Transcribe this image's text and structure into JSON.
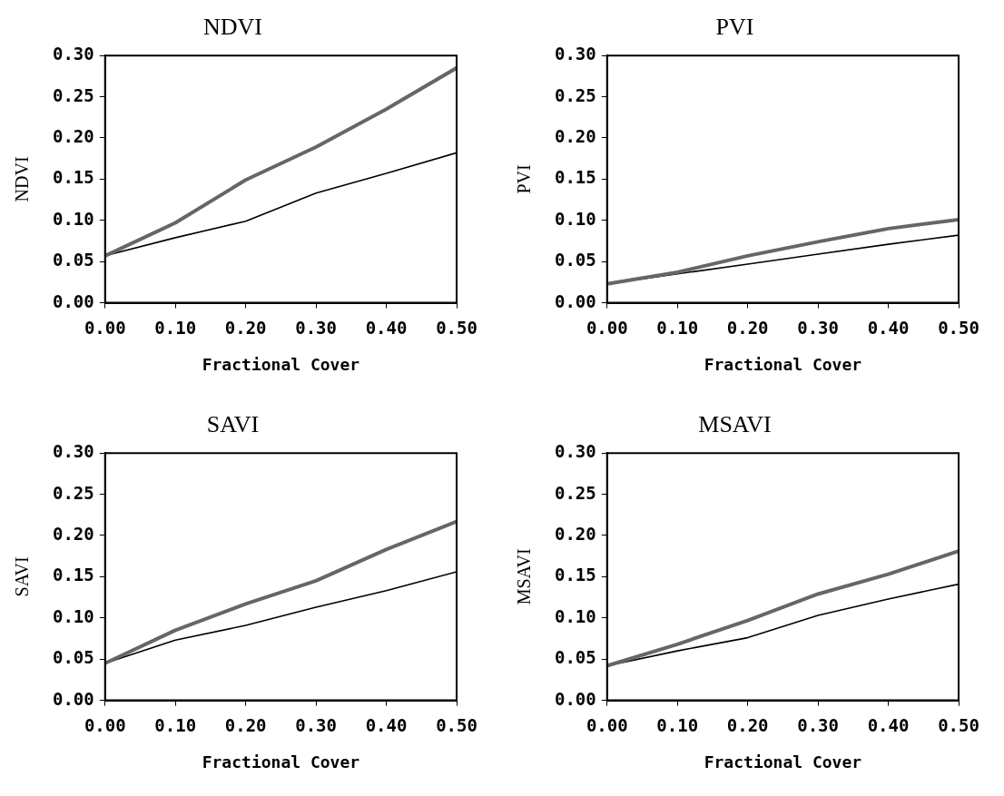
{
  "chart_data": [
    {
      "type": "line",
      "title": "NDVI",
      "xlabel": "Fractional Cover",
      "ylabel": "NDVI",
      "x": [
        0,
        0.1,
        0.2,
        0.3,
        0.4,
        0.5
      ],
      "xlim": [
        0,
        0.5
      ],
      "xticks": [
        {
          "value": 0,
          "label": "0.00"
        },
        {
          "value": 0.1,
          "label": "0.10"
        },
        {
          "value": 0.2,
          "label": "0.20"
        },
        {
          "value": 0.3,
          "label": "0.30"
        },
        {
          "value": 0.4,
          "label": "0.40"
        },
        {
          "value": 0.5,
          "label": "0.50"
        }
      ],
      "ylim": [
        0,
        0.3
      ],
      "yticks": [
        {
          "value": 0,
          "label": "0.00"
        },
        {
          "value": 0.05,
          "label": "0.05"
        },
        {
          "value": 0.1,
          "label": "0.10"
        },
        {
          "value": 0.15,
          "label": "0.15"
        },
        {
          "value": 0.2,
          "label": "0.20"
        },
        {
          "value": 0.25,
          "label": "0.25"
        },
        {
          "value": 0.3,
          "label": "0.30"
        }
      ],
      "marker": "none",
      "line_style": "solid",
      "legend": false,
      "series": [
        {
          "color": "#666666",
          "values": [
            0.057,
            0.097,
            0.149,
            0.189,
            0.235,
            0.285
          ]
        },
        {
          "color": "#000000",
          "values": [
            0.057,
            0.079,
            0.099,
            0.133,
            0.157,
            0.182
          ]
        }
      ]
    },
    {
      "type": "line",
      "title": "PVI",
      "xlabel": "Fractional Cover",
      "ylabel": "PVI",
      "x": [
        0,
        0.1,
        0.2,
        0.3,
        0.4,
        0.5
      ],
      "xlim": [
        0,
        0.5
      ],
      "xticks": [
        {
          "value": 0,
          "label": "0.00"
        },
        {
          "value": 0.1,
          "label": "0.10"
        },
        {
          "value": 0.2,
          "label": "0.20"
        },
        {
          "value": 0.3,
          "label": "0.30"
        },
        {
          "value": 0.4,
          "label": "0.40"
        },
        {
          "value": 0.5,
          "label": "0.50"
        }
      ],
      "ylim": [
        0,
        0.3
      ],
      "yticks": [
        {
          "value": 0,
          "label": "0.00"
        },
        {
          "value": 0.05,
          "label": "0.05"
        },
        {
          "value": 0.1,
          "label": "0.10"
        },
        {
          "value": 0.15,
          "label": "0.15"
        },
        {
          "value": 0.2,
          "label": "0.20"
        },
        {
          "value": 0.25,
          "label": "0.25"
        },
        {
          "value": 0.3,
          "label": "0.30"
        }
      ],
      "marker": "none",
      "line_style": "solid",
      "legend": false,
      "series": [
        {
          "color": "#666666",
          "values": [
            0.023,
            0.037,
            0.057,
            0.074,
            0.09,
            0.101
          ]
        },
        {
          "color": "#000000",
          "values": [
            0.023,
            0.035,
            0.047,
            0.059,
            0.071,
            0.082
          ]
        }
      ]
    },
    {
      "type": "line",
      "title": "SAVI",
      "xlabel": "Fractional Cover",
      "ylabel": "SAVI",
      "x": [
        0,
        0.1,
        0.2,
        0.3,
        0.4,
        0.5
      ],
      "xlim": [
        0,
        0.5
      ],
      "xticks": [
        {
          "value": 0,
          "label": "0.00"
        },
        {
          "value": 0.1,
          "label": "0.10"
        },
        {
          "value": 0.2,
          "label": "0.20"
        },
        {
          "value": 0.3,
          "label": "0.30"
        },
        {
          "value": 0.4,
          "label": "0.40"
        },
        {
          "value": 0.5,
          "label": "0.50"
        }
      ],
      "ylim": [
        0,
        0.3
      ],
      "yticks": [
        {
          "value": 0,
          "label": "0.00"
        },
        {
          "value": 0.05,
          "label": "0.05"
        },
        {
          "value": 0.1,
          "label": "0.10"
        },
        {
          "value": 0.15,
          "label": "0.15"
        },
        {
          "value": 0.2,
          "label": "0.20"
        },
        {
          "value": 0.25,
          "label": "0.25"
        },
        {
          "value": 0.3,
          "label": "0.30"
        }
      ],
      "marker": "none",
      "line_style": "solid",
      "legend": false,
      "series": [
        {
          "color": "#666666",
          "values": [
            0.045,
            0.085,
            0.117,
            0.145,
            0.183,
            0.217
          ]
        },
        {
          "color": "#000000",
          "values": [
            0.045,
            0.073,
            0.091,
            0.113,
            0.133,
            0.156
          ]
        }
      ]
    },
    {
      "type": "line",
      "title": "MSAVI",
      "xlabel": "Fractional Cover",
      "ylabel": "MSAVI",
      "x": [
        0,
        0.1,
        0.2,
        0.3,
        0.4,
        0.5
      ],
      "xlim": [
        0,
        0.5
      ],
      "xticks": [
        {
          "value": 0,
          "label": "0.00"
        },
        {
          "value": 0.1,
          "label": "0.10"
        },
        {
          "value": 0.2,
          "label": "0.20"
        },
        {
          "value": 0.3,
          "label": "0.30"
        },
        {
          "value": 0.4,
          "label": "0.40"
        },
        {
          "value": 0.5,
          "label": "0.50"
        }
      ],
      "ylim": [
        0,
        0.3
      ],
      "yticks": [
        {
          "value": 0,
          "label": "0.00"
        },
        {
          "value": 0.05,
          "label": "0.05"
        },
        {
          "value": 0.1,
          "label": "0.10"
        },
        {
          "value": 0.15,
          "label": "0.15"
        },
        {
          "value": 0.2,
          "label": "0.20"
        },
        {
          "value": 0.25,
          "label": "0.25"
        },
        {
          "value": 0.3,
          "label": "0.30"
        }
      ],
      "marker": "none",
      "line_style": "solid",
      "legend": false,
      "series": [
        {
          "color": "#666666",
          "values": [
            0.042,
            0.068,
            0.097,
            0.129,
            0.153,
            0.181
          ]
        },
        {
          "color": "#000000",
          "values": [
            0.042,
            0.06,
            0.076,
            0.103,
            0.123,
            0.141
          ]
        }
      ]
    }
  ]
}
